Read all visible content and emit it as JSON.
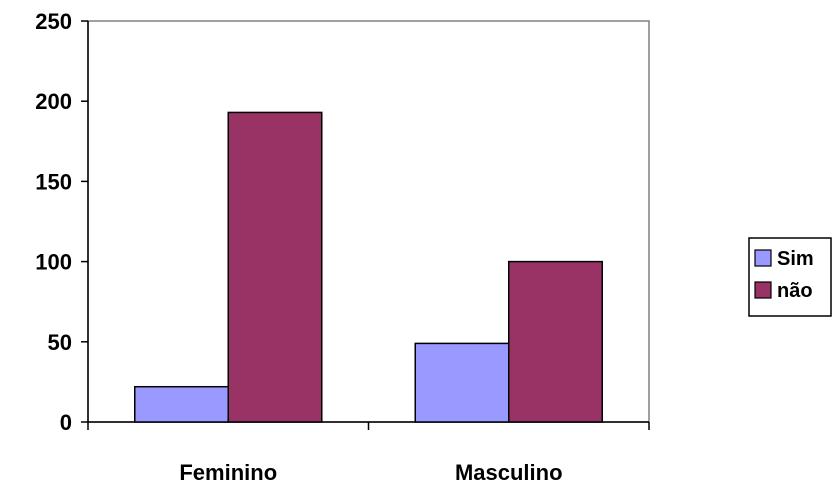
{
  "chart_data": {
    "type": "bar",
    "categories": [
      "Feminino",
      "Masculino"
    ],
    "series": [
      {
        "name": "Sim",
        "values": [
          22,
          49
        ],
        "color": "#9999FF"
      },
      {
        "name": "não",
        "values": [
          193,
          100
        ],
        "color": "#993366"
      }
    ],
    "ylim": [
      0,
      250
    ],
    "yticks": [
      "0",
      "50",
      "100",
      "150",
      "200",
      "250"
    ],
    "ytick_values": [
      0,
      50,
      100,
      150,
      200,
      250
    ],
    "grid": false,
    "legend_position": "right",
    "title": "",
    "xlabel": "",
    "ylabel": ""
  }
}
